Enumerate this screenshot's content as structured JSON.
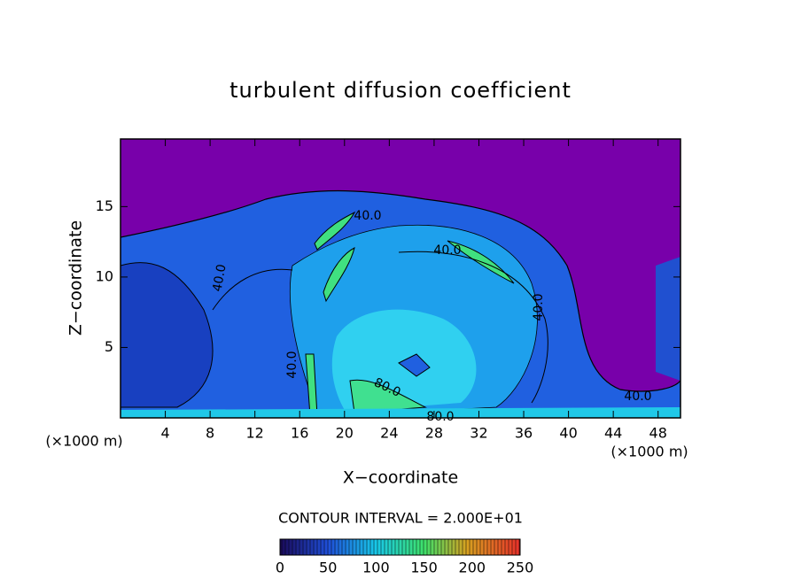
{
  "chart_data": {
    "type": "contour",
    "title": "turbulent diffusion coefficient",
    "xlabel": "X−coordinate",
    "ylabel": "Z−coordinate",
    "x_unit": "(×1000 m)",
    "x_unit_right": "(×1000 m)",
    "xlim": [
      0,
      50
    ],
    "ylim": [
      0,
      19.8
    ],
    "xticks": [
      4,
      8,
      12,
      16,
      20,
      24,
      28,
      32,
      36,
      40,
      44,
      48
    ],
    "yticks": [
      5,
      10,
      15
    ],
    "contour_labels": [
      "40.0",
      "40.0",
      "40.0",
      "40.0",
      "40.0",
      "40.0",
      "80.0",
      "80.0"
    ],
    "contour_interval": "CONTOUR INTERVAL = 2.000E+01",
    "clim": [
      0,
      250
    ],
    "cticks": [
      0,
      50,
      100,
      150,
      200,
      250
    ]
  }
}
